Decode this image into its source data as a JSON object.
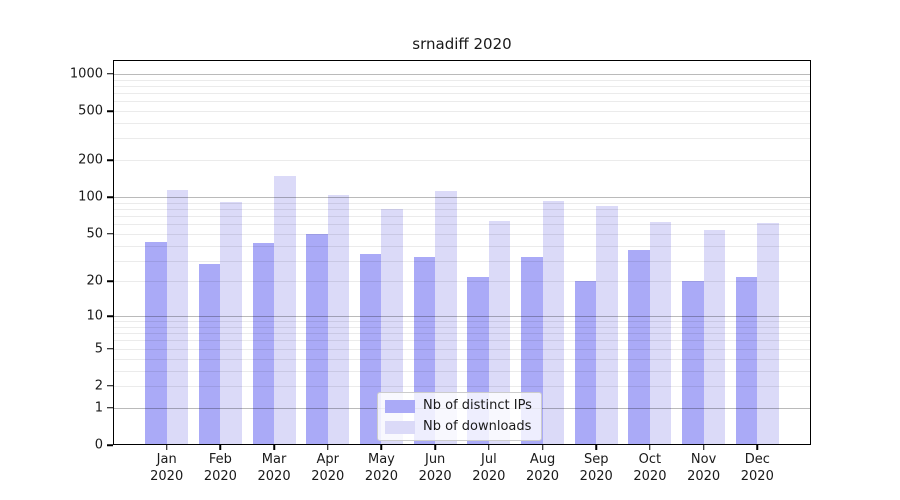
{
  "chart_data": {
    "type": "bar",
    "title": "srnadiff 2020",
    "categories": [
      "Jan",
      "Feb",
      "Mar",
      "Apr",
      "May",
      "Jun",
      "Jul",
      "Aug",
      "Sep",
      "Oct",
      "Nov",
      "Dec"
    ],
    "x_year_label": "2020",
    "series": [
      {
        "name": "Nb of distinct IPs",
        "color": "#aaaaf7",
        "values": [
          43,
          28,
          42,
          50,
          34,
          32,
          22,
          32,
          20,
          37,
          20,
          22
        ]
      },
      {
        "name": "Nb of downloads",
        "color": "#dbdaf8",
        "values": [
          115,
          91,
          149,
          105,
          80,
          112,
          64,
          93,
          85,
          62,
          54,
          61
        ]
      }
    ],
    "yaxis": {
      "scale": "log1p",
      "ticks": [
        0,
        1,
        2,
        5,
        10,
        20,
        50,
        100,
        200,
        500,
        1000
      ],
      "ylim_top": 1300
    },
    "xlabel": "",
    "ylabel": "",
    "grid": {
      "major_values": [
        1,
        10,
        100,
        1000
      ],
      "minor_values": [
        2,
        3,
        4,
        5,
        6,
        7,
        8,
        9,
        20,
        30,
        40,
        50,
        60,
        70,
        80,
        90,
        200,
        300,
        400,
        500,
        600,
        700,
        800,
        900
      ]
    },
    "legend_position": "bottom-center"
  },
  "colors": {
    "grid_major": "rgba(0,0,0,0.27)",
    "grid_minor": "rgba(0,0,0,0.08)",
    "axis": "#000000",
    "text": "#1a1a1a",
    "legend_border": "#cccccc"
  }
}
